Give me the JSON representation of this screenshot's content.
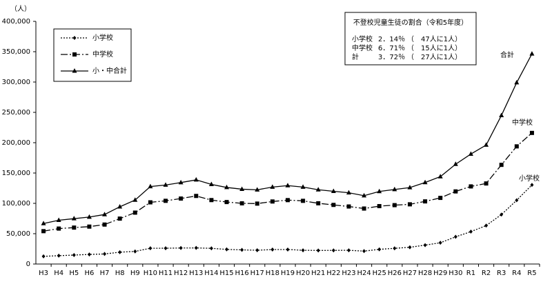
{
  "chart_data": {
    "type": "line",
    "y_axis_label": "（人）",
    "categories": [
      "H3",
      "H4",
      "H5",
      "H6",
      "H7",
      "H8",
      "H9",
      "H10",
      "H11",
      "H12",
      "H13",
      "H14",
      "H15",
      "H16",
      "H17",
      "H18",
      "H19",
      "H20",
      "H21",
      "H22",
      "H23",
      "H24",
      "H25",
      "H26",
      "H27",
      "H28",
      "H29",
      "H30",
      "R1",
      "R2",
      "R3",
      "R4",
      "R5"
    ],
    "series": [
      {
        "name": "小学校",
        "color": "#000000",
        "marker": "diamond",
        "dash": "2,2",
        "values": [
          12645,
          13710,
          14769,
          15786,
          16569,
          19498,
          20765,
          26017,
          26047,
          26373,
          26511,
          25869,
          24077,
          23318,
          22709,
          23825,
          23927,
          22652,
          22327,
          22463,
          22622,
          21243,
          24175,
          25864,
          27583,
          31151,
          35032,
          44841,
          53350,
          63350,
          81498,
          105112,
          130370
        ]
      },
      {
        "name": "中学校",
        "color": "#000000",
        "marker": "square",
        "dash": "10,3,2,3",
        "values": [
          54172,
          58421,
          60039,
          61663,
          65022,
          74853,
          84701,
          101675,
          104180,
          107913,
          112211,
          105383,
          102149,
          100040,
          99578,
          103069,
          105328,
          104153,
          100105,
          97428,
          94836,
          91446,
          95442,
          97033,
          98408,
          103235,
          108999,
          119687,
          127922,
          132777,
          163442,
          193936,
          216112
        ]
      },
      {
        "name": "小・中合計",
        "color": "#000000",
        "marker": "triangle",
        "dash": "none",
        "values": [
          66817,
          72131,
          74808,
          77449,
          81591,
          94351,
          105466,
          127692,
          130227,
          134286,
          138722,
          131252,
          126226,
          123358,
          122287,
          126894,
          129255,
          126805,
          122432,
          119891,
          117458,
          112689,
          119617,
          122897,
          125991,
          134386,
          144031,
          164528,
          181272,
          196127,
          244940,
          299048,
          346482
        ]
      }
    ],
    "series_annotations": [
      "小学校",
      "中学校",
      "合計"
    ],
    "ylim": [
      0,
      400000
    ],
    "yticks": [
      0,
      {
        "value": 50000,
        "label": "50,000"
      },
      {
        "value": 100000,
        "label": "100,000"
      },
      {
        "value": 150000,
        "label": "150,000"
      },
      {
        "value": 200000,
        "label": "200,000"
      },
      {
        "value": 250000,
        "label": "250,000"
      },
      {
        "value": 300000,
        "label": "300,000"
      },
      {
        "value": 350000,
        "label": "350,000"
      },
      {
        "value": 400000,
        "label": "400,000"
      }
    ],
    "grid": false,
    "info_box": {
      "title": "不登校児童生徒の割合（令和5年度）",
      "rows": [
        [
          "小学校",
          "2．14％",
          "（　47人に1人）"
        ],
        [
          "中学校",
          "6．71％",
          "（　15人に1人）"
        ],
        [
          "計",
          "3．72％",
          "（　27人に1人）"
        ]
      ]
    }
  }
}
